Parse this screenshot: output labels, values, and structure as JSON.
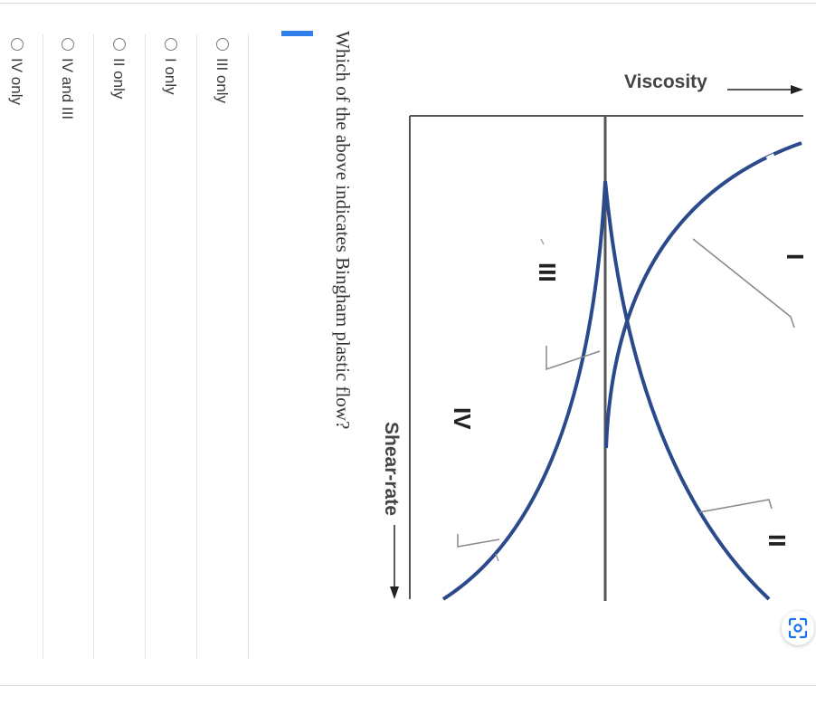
{
  "figure": {
    "axis_x_label": "Viscosity",
    "axis_y_label": "Shear-rate",
    "curve_labels": [
      "I",
      "II",
      "III",
      "IV"
    ],
    "curve_color": "#2b4a8c"
  },
  "question": {
    "text": "Which of the above indicates Bingham plastic flow?"
  },
  "options": [
    {
      "label": "III only",
      "selected": false
    },
    {
      "label": "I only",
      "selected": false
    },
    {
      "label": "II only",
      "selected": false
    },
    {
      "label": "IV and III",
      "selected": false
    },
    {
      "label": "IV only",
      "selected": false
    }
  ],
  "toolbar": {
    "scan_icon": "scan-lens-icon"
  },
  "colors": {
    "accent": "#2f80ed",
    "divider": "#d9d9d9"
  }
}
